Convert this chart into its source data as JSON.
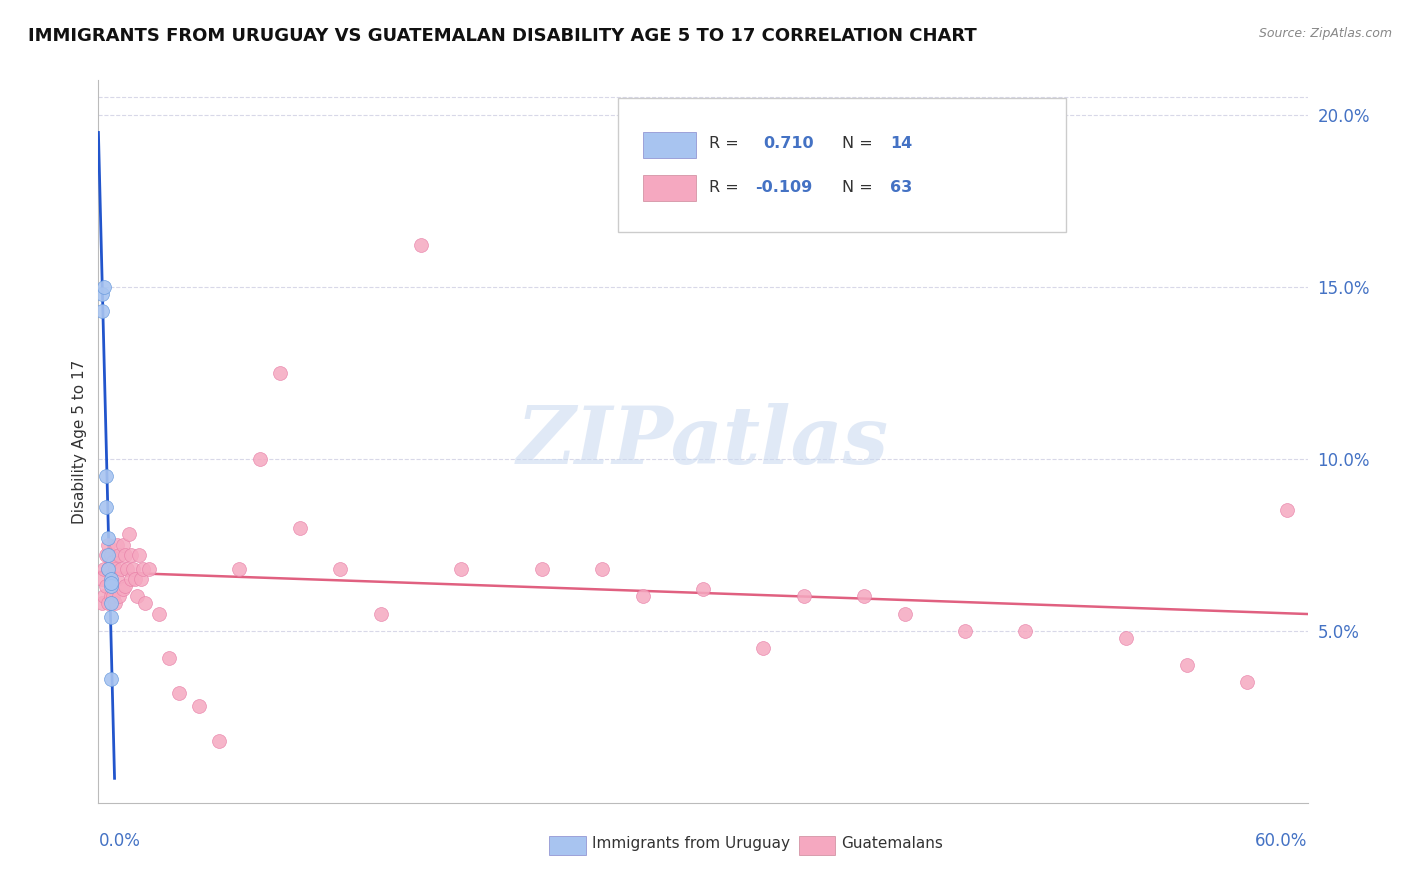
{
  "title": "IMMIGRANTS FROM URUGUAY VS GUATEMALAN DISABILITY AGE 5 TO 17 CORRELATION CHART",
  "source": "Source: ZipAtlas.com",
  "ylabel": "Disability Age 5 to 17",
  "right_yticks": [
    "5.0%",
    "10.0%",
    "15.0%",
    "20.0%"
  ],
  "right_ytick_vals": [
    0.05,
    0.1,
    0.15,
    0.2
  ],
  "watermark": "ZIPatlas",
  "uruguay_color": "#a8c4f0",
  "guatemala_color": "#f5a8c0",
  "trend_uruguay_color": "#2255cc",
  "trend_guatemala_color": "#e06080",
  "background": "#ffffff",
  "grid_color": "#d8d8e8",
  "xlim": [
    0.0,
    0.6
  ],
  "ylim": [
    0.0,
    0.21
  ],
  "title_fontsize": 13,
  "uruguay_x": [
    0.002,
    0.002,
    0.003,
    0.004,
    0.004,
    0.005,
    0.005,
    0.005,
    0.006,
    0.006,
    0.006,
    0.006,
    0.006,
    0.006
  ],
  "uruguay_y": [
    0.148,
    0.143,
    0.15,
    0.095,
    0.086,
    0.077,
    0.072,
    0.068,
    0.065,
    0.063,
    0.058,
    0.054,
    0.036,
    0.064
  ],
  "guatemala_x": [
    0.002,
    0.002,
    0.003,
    0.003,
    0.004,
    0.004,
    0.005,
    0.005,
    0.005,
    0.006,
    0.006,
    0.007,
    0.007,
    0.008,
    0.008,
    0.009,
    0.009,
    0.01,
    0.01,
    0.011,
    0.012,
    0.012,
    0.013,
    0.013,
    0.014,
    0.015,
    0.016,
    0.016,
    0.017,
    0.018,
    0.019,
    0.02,
    0.021,
    0.022,
    0.023,
    0.025,
    0.03,
    0.035,
    0.04,
    0.05,
    0.06,
    0.07,
    0.08,
    0.09,
    0.1,
    0.12,
    0.14,
    0.16,
    0.18,
    0.22,
    0.25,
    0.27,
    0.3,
    0.33,
    0.35,
    0.38,
    0.4,
    0.43,
    0.46,
    0.51,
    0.54,
    0.57,
    0.59
  ],
  "guatemala_y": [
    0.065,
    0.058,
    0.068,
    0.06,
    0.072,
    0.063,
    0.075,
    0.068,
    0.058,
    0.072,
    0.06,
    0.07,
    0.06,
    0.068,
    0.058,
    0.075,
    0.065,
    0.072,
    0.06,
    0.068,
    0.075,
    0.062,
    0.072,
    0.063,
    0.068,
    0.078,
    0.072,
    0.065,
    0.068,
    0.065,
    0.06,
    0.072,
    0.065,
    0.068,
    0.058,
    0.068,
    0.055,
    0.042,
    0.032,
    0.028,
    0.018,
    0.068,
    0.1,
    0.125,
    0.08,
    0.068,
    0.055,
    0.162,
    0.068,
    0.068,
    0.068,
    0.06,
    0.062,
    0.045,
    0.06,
    0.06,
    0.055,
    0.05,
    0.05,
    0.048,
    0.04,
    0.035,
    0.085
  ]
}
